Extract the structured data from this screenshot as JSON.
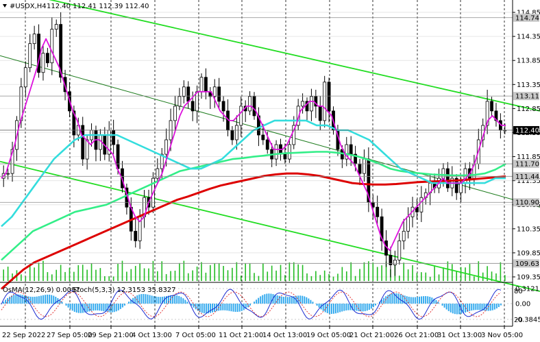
{
  "header": {
    "symbol": "#USDX,H4",
    "ohlc": "112.40 112.41 112.39 112.40"
  },
  "subwindow": {
    "osma_label": "OsMA(12,26,9) 0.0097",
    "stoch_label": "Stoch(5,3,3) 12.3153 35.8327",
    "osma_ticks": [
      "0.3121",
      "0.00",
      "-0.3845"
    ],
    "stoch_ticks": [
      "80",
      "20"
    ]
  },
  "chart_data": {
    "type": "candlestick",
    "symbol": "#USDX",
    "timeframe": "H4",
    "y_axis_ticks": [
      114.85,
      114.35,
      113.85,
      113.35,
      112.85,
      112.35,
      111.85,
      111.35,
      110.85,
      110.35,
      109.85,
      109.35
    ],
    "y_axis_tick_labels": [
      "114.85",
      "114.35",
      "113.85",
      "113.35",
      "112.85",
      "112.35",
      "111.85",
      "111.35",
      "110.85",
      "110.35",
      "109.85",
      "109.35"
    ],
    "ylim": [
      109.25,
      115.05
    ],
    "x_tick_labels": [
      "22 Sep 2022",
      "27 Sep 05:00",
      "29 Sep 21:00",
      "4 Oct 13:00",
      "7 Oct 05:00",
      "11 Oct 21:00",
      "14 Oct 13:00",
      "19 Oct 05:00",
      "21 Oct 21:00",
      "26 Oct 21:00",
      "31 Oct 13:00",
      "3 Nov 05:00"
    ],
    "price_tags": [
      {
        "label": "114.74",
        "value": 114.74,
        "style": "level"
      },
      {
        "label": "113.11",
        "value": 113.11,
        "style": "level"
      },
      {
        "label": "112.40",
        "value": 112.4,
        "style": "current"
      },
      {
        "label": "111.70",
        "value": 111.7,
        "style": "level"
      },
      {
        "label": "111.44",
        "value": 111.44,
        "style": "level"
      },
      {
        "label": "110.90",
        "value": 110.9,
        "style": "level"
      },
      {
        "label": "109.63",
        "value": 109.63,
        "style": "level"
      }
    ],
    "close_path": [
      111.5,
      111.5,
      112.0,
      112.6,
      113.3,
      113.7,
      114.2,
      114.4,
      113.6,
      114.0,
      113.8,
      114.5,
      114.6,
      113.5,
      113.2,
      112.8,
      112.3,
      112.5,
      111.8,
      112.2,
      112.4,
      112.0,
      112.3,
      111.9,
      112.4,
      112.1,
      111.6,
      111.2,
      110.8,
      110.3,
      110.1,
      110.6,
      111.0,
      110.8,
      111.4,
      111.6,
      111.9,
      112.2,
      112.6,
      112.9,
      113.1,
      113.3,
      113.0,
      112.8,
      113.2,
      113.5,
      113.2,
      113.1,
      113.3,
      113.0,
      112.8,
      112.4,
      112.2,
      112.5,
      112.9,
      112.8,
      113.1,
      112.7,
      112.3,
      112.2,
      112.0,
      111.8,
      112.1,
      111.9,
      111.8,
      112.1,
      112.5,
      112.9,
      113.0,
      112.8,
      113.1,
      112.9,
      112.6,
      113.4,
      112.8,
      112.4,
      112.0,
      111.8,
      112.1,
      111.9,
      111.7,
      111.5,
      111.8,
      110.9,
      110.8,
      110.6,
      110.1,
      109.8,
      109.6,
      109.7,
      110.1,
      110.3,
      110.6,
      110.8,
      110.7,
      111.0,
      111.1,
      111.3,
      111.2,
      111.4,
      111.6,
      111.2,
      111.4,
      111.1,
      111.3,
      111.6,
      111.4,
      111.7,
      112.2,
      112.5,
      113.0,
      112.8,
      112.6,
      112.4,
      112.4
    ],
    "indicators": {
      "ma_fast_magenta": [
        111.4,
        111.5,
        111.8,
        112.1,
        112.5,
        112.8,
        113.1,
        113.4,
        113.7,
        114.1,
        114.3,
        114.1,
        113.9,
        113.7,
        113.4,
        113.1,
        112.8,
        112.6,
        112.3,
        112.2,
        112.1,
        112.2,
        112.2,
        112.1,
        112.0,
        111.9,
        111.6,
        111.4,
        111.1,
        110.8,
        110.6,
        110.5,
        110.6,
        110.9,
        111.1,
        111.3,
        111.5,
        111.8,
        112.1,
        112.4,
        112.7,
        112.9,
        113.0,
        113.1,
        113.2,
        113.2,
        113.2,
        113.2,
        113.0,
        112.8,
        112.7,
        112.6,
        112.6,
        112.7,
        112.8,
        112.9,
        112.9,
        112.8,
        112.6,
        112.4,
        112.2,
        112.0,
        112.0,
        112.0,
        112.1,
        112.3,
        112.5,
        112.8,
        112.9,
        113.0,
        113.0,
        112.9,
        112.9,
        112.8,
        112.7,
        112.4,
        112.1,
        111.9,
        111.8,
        111.7,
        111.5,
        111.3,
        111.1,
        110.8,
        110.5,
        110.2,
        110.0,
        109.9,
        110.1,
        110.3,
        110.5,
        110.6,
        110.7,
        110.8,
        110.9,
        111.0,
        111.1,
        111.2,
        111.3,
        111.4,
        111.3,
        111.3,
        111.3,
        111.3,
        111.4,
        111.5,
        111.7,
        112.0,
        112.3,
        112.6,
        112.7,
        112.6,
        112.5,
        112.5
      ],
      "ma_mid_cyan": [
        110.4,
        110.6,
        110.9,
        111.2,
        111.5,
        111.8,
        112.0,
        112.2,
        112.3,
        112.3,
        112.3,
        112.3,
        112.2,
        112.1,
        112.0,
        111.9,
        111.8,
        111.7,
        111.6,
        111.6,
        111.7,
        111.8,
        112.0,
        112.2,
        112.4,
        112.5,
        112.6,
        112.6,
        112.6,
        112.6,
        112.5,
        112.5,
        112.4,
        112.4,
        112.3,
        112.2,
        112.0,
        111.8,
        111.6,
        111.5,
        111.4,
        111.3,
        111.3,
        111.3,
        111.3,
        111.3,
        111.3,
        111.4,
        111.4
      ],
      "ma_slow_green": [
        109.7,
        109.9,
        110.1,
        110.3,
        110.4,
        110.5,
        110.6,
        110.7,
        110.75,
        110.8,
        110.85,
        110.95,
        111.05,
        111.15,
        111.25,
        111.35,
        111.45,
        111.55,
        111.6,
        111.65,
        111.7,
        111.75,
        111.8,
        111.82,
        111.85,
        111.87,
        111.9,
        111.92,
        111.93,
        111.94,
        111.95,
        111.95,
        111.93,
        111.9,
        111.85,
        111.78,
        111.7,
        111.6,
        111.55,
        111.52,
        111.5,
        111.48,
        111.47,
        111.46,
        111.46,
        111.47,
        111.5,
        111.58,
        111.7
      ],
      "ma_200_red": [
        109.1,
        109.3,
        109.5,
        109.65,
        109.75,
        109.85,
        109.95,
        110.05,
        110.15,
        110.25,
        110.35,
        110.45,
        110.55,
        110.65,
        110.75,
        110.85,
        110.95,
        111.02,
        111.1,
        111.18,
        111.25,
        111.3,
        111.35,
        111.4,
        111.45,
        111.48,
        111.5,
        111.5,
        111.48,
        111.45,
        111.4,
        111.35,
        111.3,
        111.28,
        111.27,
        111.27,
        111.28,
        111.3,
        111.32,
        111.33,
        111.34,
        111.35,
        111.36,
        111.38,
        111.4,
        111.42,
        111.44
      ]
    },
    "channel_lines": [
      {
        "color": "green",
        "from": [
          0,
          115.35
        ],
        "to": [
          788,
          112.8
        ]
      },
      {
        "color": "dark-green",
        "from": [
          0,
          113.95
        ],
        "to": [
          788,
          110.8
        ]
      },
      {
        "color": "green",
        "from": [
          0,
          111.75
        ],
        "to": [
          788,
          109.05
        ]
      }
    ],
    "grid": true,
    "legend": "none"
  }
}
